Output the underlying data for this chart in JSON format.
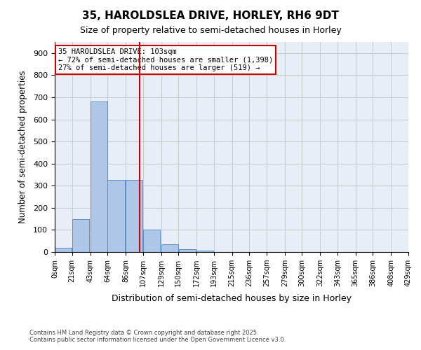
{
  "title_line1": "35, HAROLDSLEA DRIVE, HORLEY, RH6 9DT",
  "title_line2": "Size of property relative to semi-detached houses in Horley",
  "xlabel": "Distribution of semi-detached houses by size in Horley",
  "ylabel": "Number of semi-detached properties",
  "bin_labels": [
    "0sqm",
    "21sqm",
    "43sqm",
    "64sqm",
    "86sqm",
    "107sqm",
    "129sqm",
    "150sqm",
    "172sqm",
    "193sqm",
    "215sqm",
    "236sqm",
    "257sqm",
    "279sqm",
    "300sqm",
    "322sqm",
    "343sqm",
    "365sqm",
    "386sqm",
    "408sqm",
    "429sqm"
  ],
  "bin_edges": [
    0,
    21,
    43,
    64,
    86,
    107,
    129,
    150,
    172,
    193,
    215,
    236,
    257,
    279,
    300,
    322,
    343,
    365,
    386,
    408,
    429
  ],
  "bar_heights": [
    20,
    150,
    680,
    325,
    325,
    100,
    35,
    12,
    5,
    0,
    0,
    0,
    0,
    0,
    0,
    0,
    0,
    0,
    0,
    0
  ],
  "bar_color": "#aec6e8",
  "bar_edgecolor": "#5a8fc0",
  "property_size": 103,
  "vline_color": "#cc0000",
  "annotation_title": "35 HAROLDSLEA DRIVE: 103sqm",
  "annotation_line1": "← 72% of semi-detached houses are smaller (1,398)",
  "annotation_line2": "27% of semi-detached houses are larger (519) →",
  "annotation_box_color": "#cc0000",
  "annotation_bg": "#ffffff",
  "ylim": [
    0,
    950
  ],
  "yticks": [
    0,
    100,
    200,
    300,
    400,
    500,
    600,
    700,
    800,
    900
  ],
  "grid_color": "#cccccc",
  "bg_color": "#e8eef8",
  "footer_line1": "Contains HM Land Registry data © Crown copyright and database right 2025.",
  "footer_line2": "Contains public sector information licensed under the Open Government Licence v3.0."
}
